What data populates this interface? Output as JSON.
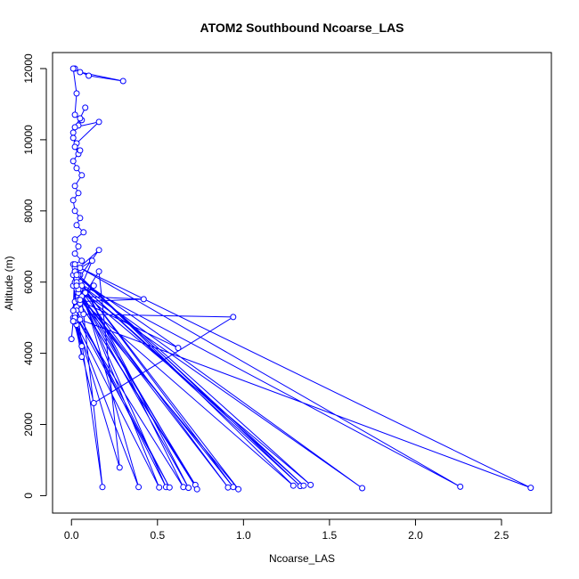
{
  "chart_data": {
    "type": "line",
    "title": "ATOM2 Southbound Ncoarse_LAS",
    "xlabel": "Ncoarse_LAS",
    "ylabel": "Altitude (m)",
    "xlim": [
      -0.11,
      2.79
    ],
    "ylim": [
      -490,
      12450
    ],
    "x_ticks": [
      0.0,
      0.5,
      1.0,
      1.5,
      2.0,
      2.5
    ],
    "x_tick_labels": [
      "0.0",
      "0.5",
      "1.0",
      "1.5",
      "2.0",
      "2.5"
    ],
    "y_ticks": [
      0,
      2000,
      4000,
      6000,
      8000,
      10000,
      12000
    ],
    "y_tick_labels": [
      "0",
      "2000",
      "4000",
      "6000",
      "8000",
      "10000",
      "12000"
    ],
    "grid": false,
    "legend": "none",
    "color": "#0000ff",
    "series": [
      {
        "x": [
          0.02,
          0.05,
          0.3,
          0.1,
          0.01,
          0.03,
          0.02,
          0.06,
          0.04,
          0.01,
          0.08,
          0.05,
          0.02,
          0.16,
          0.03,
          0.01,
          0.04,
          0.02,
          0.05,
          0.01,
          0.03,
          0.06,
          0.02,
          0.04,
          0.01,
          0.02,
          0.05,
          0.03,
          0.07,
          0.02,
          0.04,
          0.02,
          0.06,
          0.01,
          0.03,
          0.05,
          0.02,
          0.04,
          0.03,
          0.01,
          0.16,
          0.02,
          0.12,
          0.05,
          0.08,
          0.03,
          0.06,
          0.42,
          0.02,
          0.13,
          0.04,
          0.02,
          0.07,
          0.94,
          0.13,
          0.01,
          0.05,
          0.02,
          0.06,
          0.03,
          0.01,
          0.62,
          0.04,
          0.02,
          0.28,
          0.16,
          0.03,
          0.18,
          0.05,
          0.39,
          0.02,
          0.51,
          0.06,
          0.55,
          0.03,
          0.57,
          0.02,
          0.65,
          0.04,
          0.68,
          0.03,
          0.72,
          0.05,
          0.73,
          0.02,
          0.91,
          0.04,
          0.94,
          0.03,
          0.97,
          0.05,
          1.29,
          0.02,
          1.33,
          0.06,
          1.35,
          0.03,
          1.39,
          0.04,
          1.69,
          0.03,
          2.26,
          0.05,
          2.67,
          0.02,
          0.06,
          0.01,
          0.0,
          0.03,
          0.01,
          0.02
        ],
        "y": [
          12000,
          11900,
          11650,
          11800,
          12000,
          11300,
          10700,
          10550,
          10400,
          10200,
          10900,
          10600,
          10350,
          10500,
          9900,
          10050,
          9600,
          9800,
          9700,
          9400,
          9200,
          9000,
          8700,
          8500,
          8300,
          8000,
          7800,
          7600,
          7400,
          7200,
          7000,
          6800,
          6600,
          6500,
          6350,
          6200,
          6400,
          6150,
          6000,
          5900,
          6900,
          6300,
          6600,
          5800,
          5700,
          6100,
          5600,
          5520,
          5450,
          5900,
          5350,
          5250,
          5100,
          5020,
          2600,
          5000,
          4950,
          4900,
          3900,
          4800,
          6200,
          4150,
          5500,
          5000,
          790,
          6300,
          5300,
          240,
          6000,
          240,
          4900,
          230,
          5600,
          240,
          5200,
          230,
          5100,
          240,
          6200,
          220,
          5800,
          300,
          5400,
          180,
          6000,
          230,
          5700,
          240,
          6100,
          180,
          5500,
          280,
          6300,
          270,
          5900,
          280,
          6200,
          300,
          5800,
          210,
          6000,
          250,
          6400,
          220,
          5000,
          4200,
          4900,
          4400,
          5900,
          5200,
          6500
        ]
      }
    ]
  }
}
